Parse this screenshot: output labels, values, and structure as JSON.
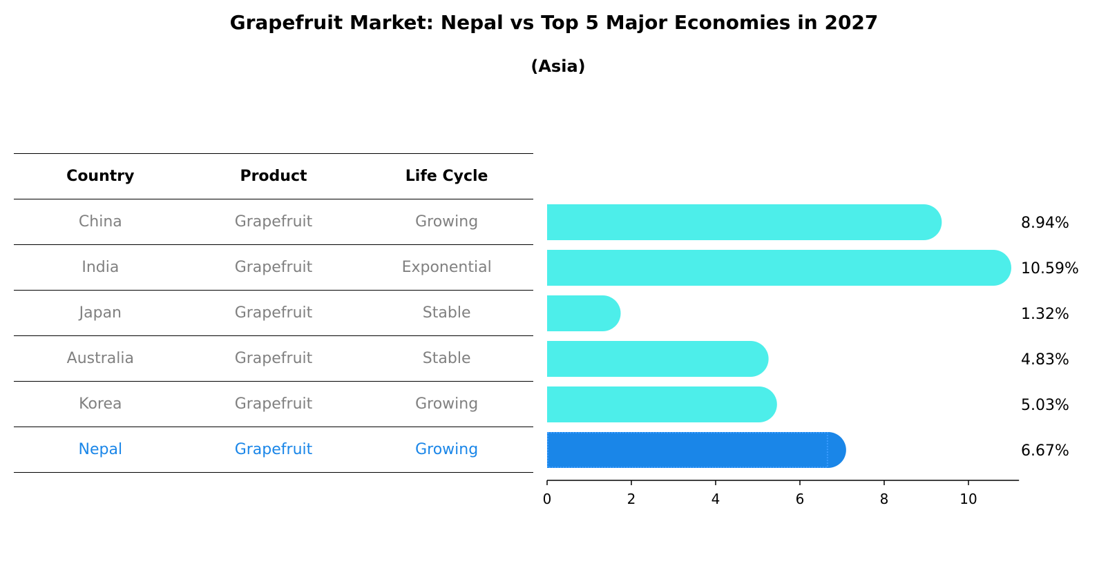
{
  "title": "Grapefruit Market: Nepal vs Top 5 Major Economies in 2027",
  "subtitle": "(Asia)",
  "table": {
    "headers": [
      "Country",
      "Product",
      "Life Cycle"
    ],
    "rows": [
      {
        "country": "China",
        "product": "Grapefruit",
        "life_cycle": "Growing"
      },
      {
        "country": "India",
        "product": "Grapefruit",
        "life_cycle": "Exponential"
      },
      {
        "country": "Japan",
        "product": "Grapefruit",
        "life_cycle": "Stable"
      },
      {
        "country": "Australia",
        "product": "Grapefruit",
        "life_cycle": "Stable"
      },
      {
        "country": "Korea",
        "product": "Grapefruit",
        "life_cycle": "Growing"
      },
      {
        "country": "Nepal",
        "product": "Grapefruit",
        "life_cycle": "Growing"
      }
    ]
  },
  "colors": {
    "bar": "#4deeea",
    "highlight": "#1a86e8",
    "text_muted": "#808080"
  },
  "chart_data": {
    "type": "bar",
    "orientation": "horizontal",
    "categories": [
      "China",
      "India",
      "Japan",
      "Australia",
      "Korea",
      "Nepal"
    ],
    "values": [
      8.94,
      10.59,
      1.32,
      4.83,
      5.03,
      6.67
    ],
    "value_labels": [
      "8.94%",
      "10.59%",
      "1.32%",
      "4.83%",
      "5.03%",
      "6.67%"
    ],
    "highlight_category": "Nepal",
    "xlim": [
      0,
      11.2
    ],
    "xticks": [
      0,
      2,
      4,
      6,
      8,
      10
    ],
    "xtick_labels": [
      "0",
      "2",
      "4",
      "6",
      "8",
      "10"
    ],
    "grid": false
  }
}
